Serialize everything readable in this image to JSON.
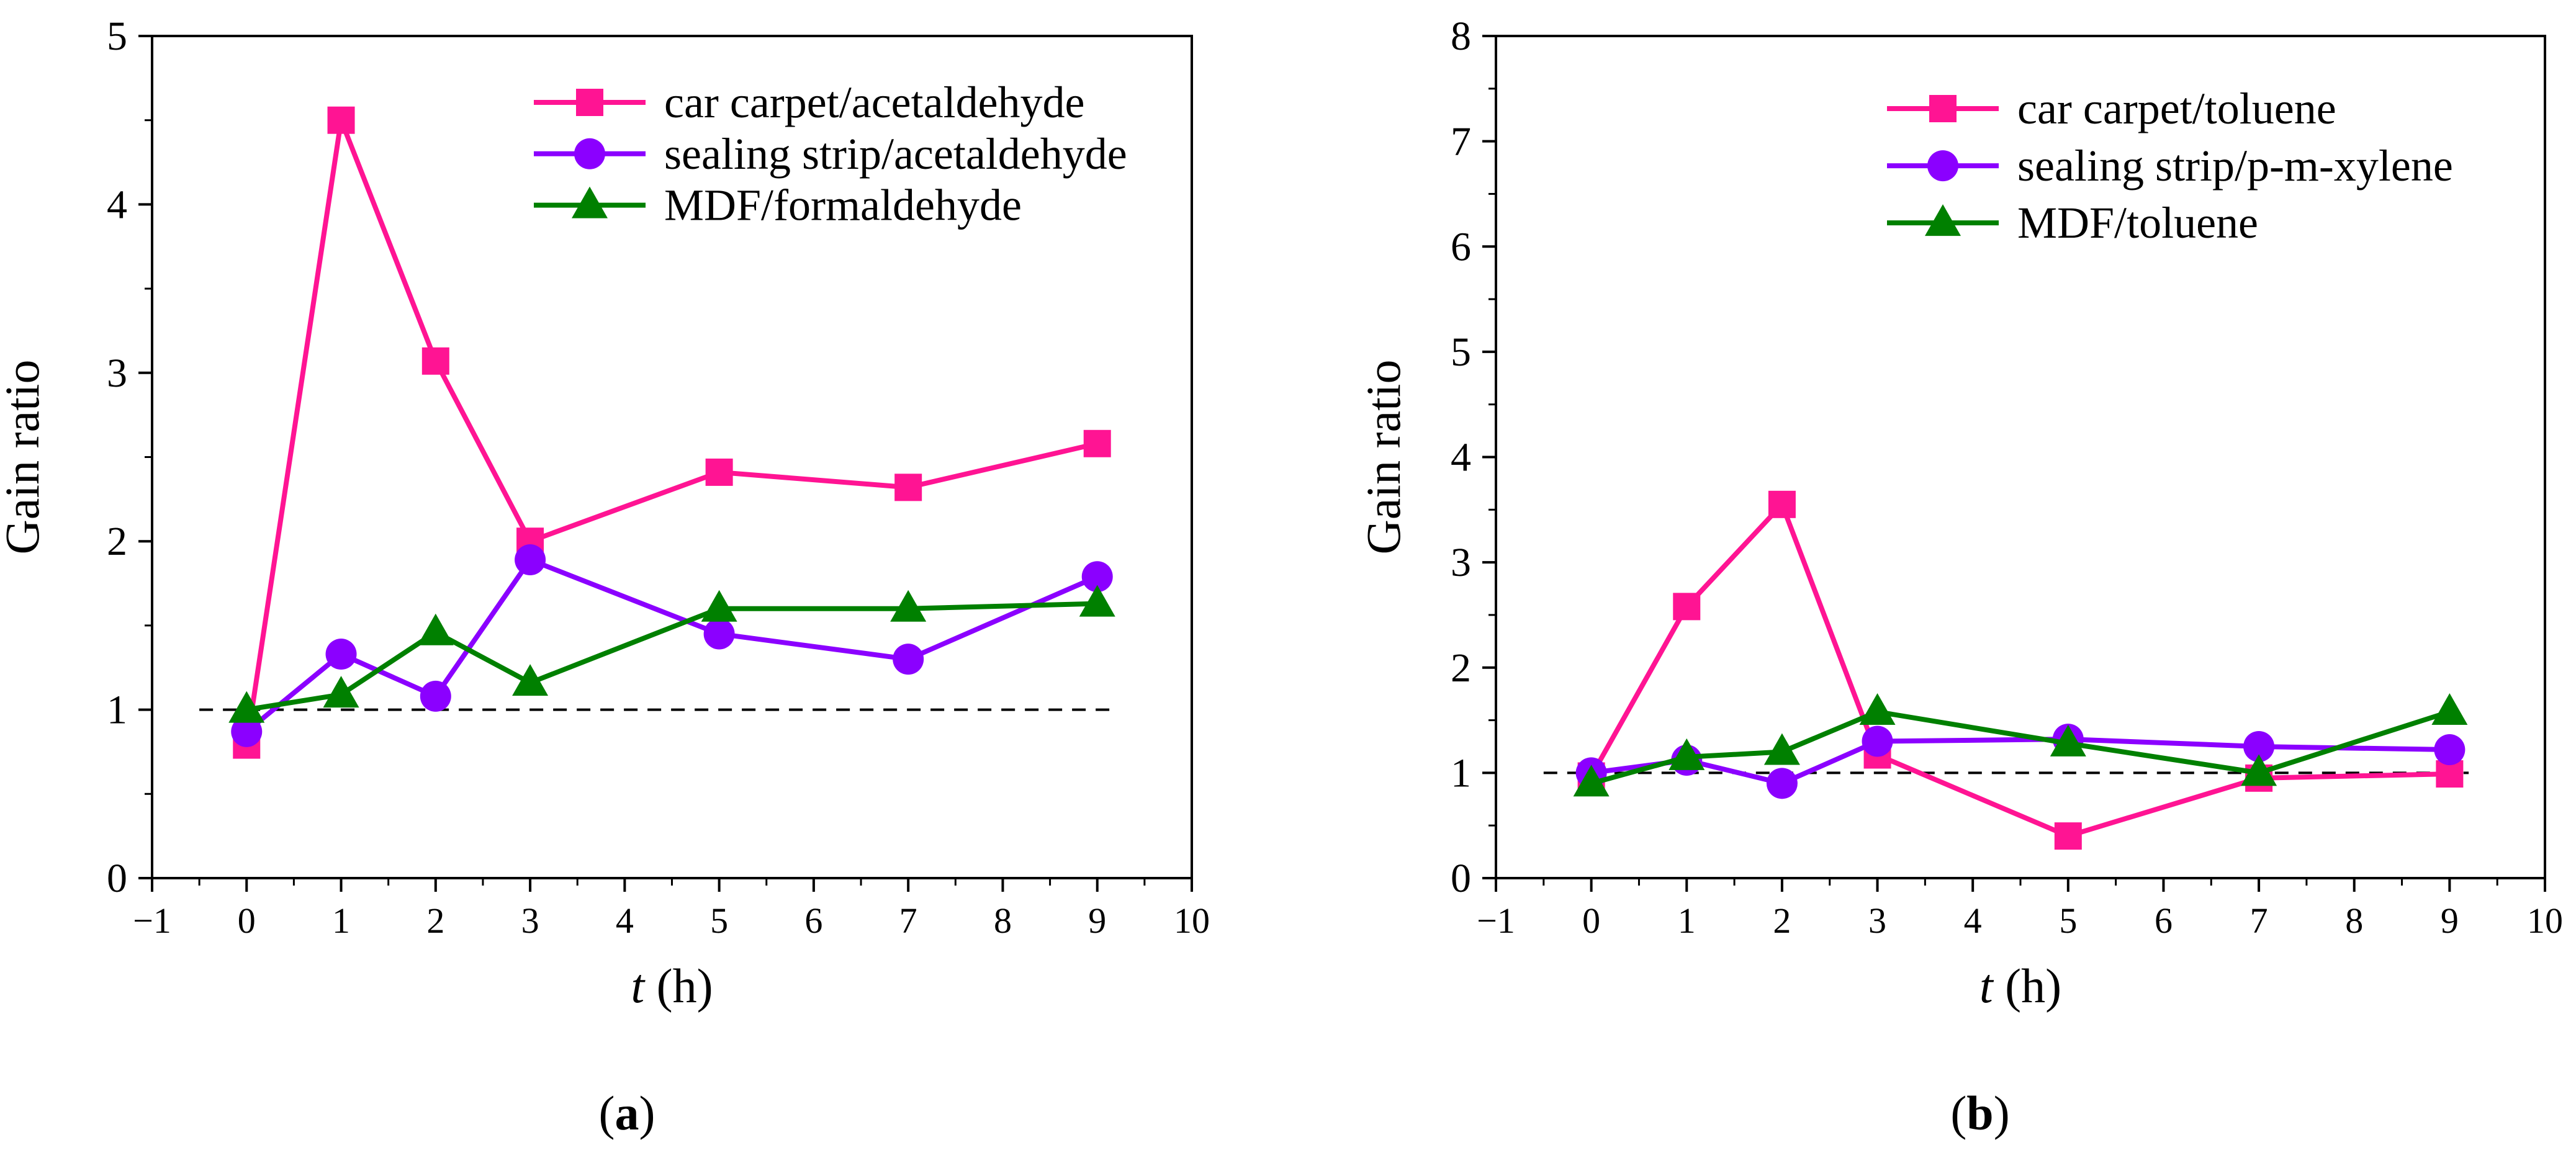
{
  "chart_data": [
    {
      "type": "line",
      "panel_label": "a",
      "xlabel_var": "t",
      "xlabel_unit": "(h)",
      "ylabel": "Gain ratio",
      "xlim": [
        -1,
        10
      ],
      "ylim": [
        0,
        5
      ],
      "x_major_ticks": [
        -1,
        0,
        1,
        2,
        3,
        4,
        5,
        6,
        7,
        8,
        9,
        10
      ],
      "y_major_ticks": [
        0,
        1,
        2,
        3,
        4,
        5
      ],
      "reference_line": 1,
      "legend_position": "top-right",
      "x": [
        0,
        1,
        2,
        3,
        5,
        7,
        9
      ],
      "series": [
        {
          "name": "car carpet/acetaldehyde",
          "color": "#FF1493",
          "marker": "square",
          "values": [
            0.79,
            4.5,
            3.07,
            2.0,
            2.41,
            2.32,
            2.58
          ]
        },
        {
          "name": "sealing strip/acetaldehyde",
          "color": "#8B00FF",
          "marker": "circle",
          "values": [
            0.87,
            1.33,
            1.08,
            1.89,
            1.45,
            1.3,
            1.79
          ]
        },
        {
          "name": "MDF/formaldehyde",
          "color": "#008000",
          "marker": "triangle",
          "values": [
            1.0,
            1.09,
            1.46,
            1.16,
            1.6,
            1.6,
            1.63
          ]
        }
      ]
    },
    {
      "type": "line",
      "panel_label": "b",
      "xlabel_var": "t",
      "xlabel_unit": "(h)",
      "ylabel": "Gain ratio",
      "xlim": [
        -1,
        10
      ],
      "ylim": [
        0,
        8
      ],
      "x_major_ticks": [
        -1,
        0,
        1,
        2,
        3,
        4,
        5,
        6,
        7,
        8,
        9,
        10
      ],
      "y_major_ticks": [
        0,
        1,
        2,
        3,
        4,
        5,
        6,
        7,
        8
      ],
      "reference_line": 1,
      "legend_position": "top-right",
      "x": [
        0,
        1,
        2,
        3,
        5,
        7,
        9
      ],
      "series": [
        {
          "name": "car carpet/toluene",
          "color": "#FF1493",
          "marker": "square",
          "values": [
            0.97,
            2.58,
            3.55,
            1.17,
            0.4,
            0.95,
            0.99
          ]
        },
        {
          "name": "sealing strip/p-m-xylene",
          "color": "#8B00FF",
          "marker": "circle",
          "values": [
            1.0,
            1.12,
            0.9,
            1.3,
            1.32,
            1.25,
            1.22
          ]
        },
        {
          "name": "MDF/toluene",
          "color": "#008000",
          "marker": "triangle",
          "values": [
            0.9,
            1.15,
            1.2,
            1.58,
            1.28,
            1.0,
            1.58
          ]
        }
      ]
    }
  ]
}
